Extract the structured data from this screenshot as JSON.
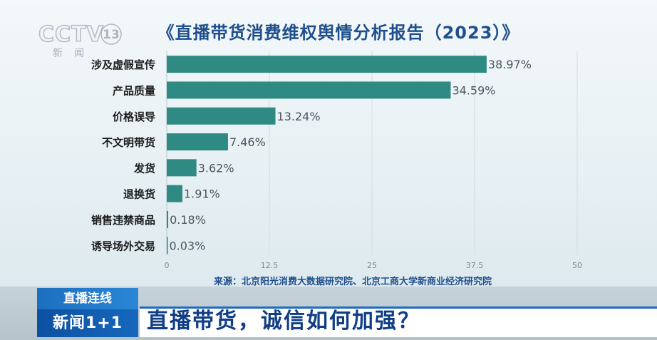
{
  "logo": {
    "text": "CCTV",
    "channel": "13",
    "sub": "新闻"
  },
  "chart_data": {
    "type": "bar",
    "orientation": "horizontal",
    "title": "《直播带货消费维权舆情分析报告（2023）》",
    "categories": [
      "涉及虚假宣传",
      "产品质量",
      "价格误导",
      "不文明带货",
      "发货",
      "退换货",
      "销售违禁商品",
      "诱导场外交易"
    ],
    "values": [
      38.97,
      34.59,
      13.24,
      7.46,
      3.62,
      1.91,
      0.18,
      0.03
    ],
    "value_labels": [
      "38.97%",
      "34.59%",
      "13.24%",
      "7.46%",
      "3.62%",
      "1.91%",
      "0.18%",
      "0.03%"
    ],
    "xlim": [
      0,
      50
    ],
    "x_ticks": [
      0,
      12.5,
      25,
      37.5,
      50
    ],
    "x_tick_labels": [
      "0",
      "12.5",
      "25",
      "37.5",
      "50"
    ],
    "grid": true,
    "bar_color": "#2f8a83",
    "source": "来源：北京阳光消费大数据研究院、北京工商大学新商业经济研究院"
  },
  "banner": {
    "tag_top": "直播连线",
    "tag_bottom": "新闻1+1",
    "headline": "直播带货，诚信如何加强？"
  }
}
